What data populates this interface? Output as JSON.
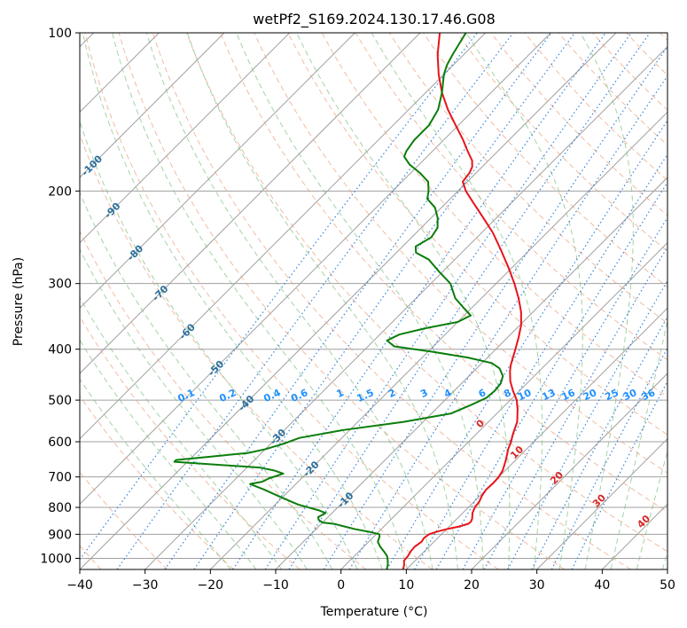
{
  "chart_data": {
    "type": "line",
    "title": "wetPf2_S169.2024.130.17.46.G08",
    "xlabel": "Temperature (°C)",
    "ylabel": "Pressure (hPa)",
    "xlim": [
      -40,
      50
    ],
    "ylim": [
      1050,
      100
    ],
    "y_scale": "log",
    "skew": true,
    "x_ticks": [
      -40,
      -30,
      -20,
      -10,
      0,
      10,
      20,
      30,
      40,
      50
    ],
    "y_ticks": [
      100,
      200,
      300,
      400,
      500,
      600,
      700,
      800,
      900,
      1000
    ],
    "grid": true,
    "colors": {
      "temperature": "#e8141a",
      "dewpoint": "#0a7d0a",
      "dry_adiabat": "#e9a07a",
      "moist_adiabat": "#7fbf7f",
      "mixing_ratio": "#1e78d8",
      "isotherm": "#a0a0a0"
    },
    "series": [
      {
        "key": "temperature",
        "points": [
          [
            1050,
            9.5
          ],
          [
            1030,
            9.0
          ],
          [
            1010,
            8.3
          ],
          [
            990,
            8.2
          ],
          [
            970,
            7.9
          ],
          [
            950,
            7.8
          ],
          [
            930,
            8.1
          ],
          [
            915,
            7.9
          ],
          [
            900,
            8.1
          ],
          [
            890,
            8.9
          ],
          [
            880,
            10.0
          ],
          [
            870,
            11.5
          ],
          [
            860,
            12.5
          ],
          [
            852,
            12.6
          ],
          [
            840,
            12.3
          ],
          [
            820,
            11.5
          ],
          [
            800,
            11.0
          ],
          [
            780,
            10.8
          ],
          [
            760,
            10.3
          ],
          [
            740,
            10.0
          ],
          [
            720,
            10.1
          ],
          [
            700,
            10.0
          ],
          [
            680,
            9.6
          ],
          [
            650,
            8.5
          ],
          [
            620,
            7.2
          ],
          [
            600,
            6.5
          ],
          [
            580,
            5.6
          ],
          [
            550,
            4.4
          ],
          [
            520,
            2.5
          ],
          [
            500,
            1.0
          ],
          [
            480,
            -1.0
          ],
          [
            460,
            -2.9
          ],
          [
            440,
            -4.5
          ],
          [
            430,
            -5.2
          ],
          [
            420,
            -5.8
          ],
          [
            400,
            -7.0
          ],
          [
            380,
            -8.3
          ],
          [
            360,
            -9.8
          ],
          [
            340,
            -11.8
          ],
          [
            320,
            -14.3
          ],
          [
            300,
            -17.2
          ],
          [
            280,
            -20.5
          ],
          [
            260,
            -24.2
          ],
          [
            240,
            -28.3
          ],
          [
            225,
            -32.0
          ],
          [
            210,
            -36.0
          ],
          [
            200,
            -38.8
          ],
          [
            192,
            -40.7
          ],
          [
            185,
            -41.0
          ],
          [
            180,
            -41.5
          ],
          [
            175,
            -42.5
          ],
          [
            170,
            -44.0
          ],
          [
            165,
            -45.5
          ],
          [
            160,
            -47.0
          ],
          [
            150,
            -50.4
          ],
          [
            140,
            -54.0
          ],
          [
            130,
            -57.5
          ],
          [
            120,
            -60.8
          ],
          [
            110,
            -64.0
          ],
          [
            100,
            -67.0
          ]
        ]
      },
      {
        "key": "dewpoint",
        "points": [
          [
            1050,
            7.0
          ],
          [
            1030,
            6.5
          ],
          [
            1010,
            5.8
          ],
          [
            990,
            5.0
          ],
          [
            970,
            3.8
          ],
          [
            950,
            2.5
          ],
          [
            930,
            1.4
          ],
          [
            910,
            0.9
          ],
          [
            900,
            0.5
          ],
          [
            890,
            -1.5
          ],
          [
            880,
            -4.0
          ],
          [
            870,
            -6.0
          ],
          [
            860,
            -8.0
          ],
          [
            855,
            -10.0
          ],
          [
            845,
            -11.0
          ],
          [
            835,
            -11.5
          ],
          [
            820,
            -11.0
          ],
          [
            810,
            -12.5
          ],
          [
            800,
            -14.5
          ],
          [
            790,
            -16.5
          ],
          [
            780,
            -18.0
          ],
          [
            760,
            -21.0
          ],
          [
            740,
            -24.0
          ],
          [
            722,
            -27.0
          ],
          [
            715,
            -25.5
          ],
          [
            705,
            -25.0
          ],
          [
            690,
            -23.5
          ],
          [
            680,
            -25.5
          ],
          [
            672,
            -28.0
          ],
          [
            660,
            -38.0
          ],
          [
            655,
            -42.0
          ],
          [
            650,
            -42.0
          ],
          [
            640,
            -37.0
          ],
          [
            630,
            -32.0
          ],
          [
            620,
            -30.0
          ],
          [
            605,
            -28.0
          ],
          [
            590,
            -26.5
          ],
          [
            570,
            -21.0
          ],
          [
            550,
            -13.0
          ],
          [
            530,
            -7.0
          ],
          [
            510,
            -5.2
          ],
          [
            495,
            -4.0
          ],
          [
            480,
            -3.8
          ],
          [
            465,
            -4.0
          ],
          [
            450,
            -4.8
          ],
          [
            435,
            -6.5
          ],
          [
            425,
            -8.5
          ],
          [
            415,
            -13.0
          ],
          [
            405,
            -19.0
          ],
          [
            395,
            -26.0
          ],
          [
            385,
            -28.0
          ],
          [
            375,
            -27.0
          ],
          [
            365,
            -24.0
          ],
          [
            355,
            -20.0
          ],
          [
            345,
            -19.0
          ],
          [
            335,
            -21.0
          ],
          [
            320,
            -24.0
          ],
          [
            300,
            -27.0
          ],
          [
            285,
            -30.5
          ],
          [
            270,
            -34.0
          ],
          [
            262,
            -37.0
          ],
          [
            255,
            -38.0
          ],
          [
            245,
            -37.0
          ],
          [
            235,
            -37.5
          ],
          [
            225,
            -39.0
          ],
          [
            215,
            -41.0
          ],
          [
            207,
            -43.5
          ],
          [
            200,
            -44.5
          ],
          [
            192,
            -46.0
          ],
          [
            185,
            -48.5
          ],
          [
            178,
            -51.5
          ],
          [
            172,
            -53.5
          ],
          [
            168,
            -54.0
          ],
          [
            160,
            -54.5
          ],
          [
            150,
            -54.5
          ],
          [
            140,
            -55.5
          ],
          [
            130,
            -57.5
          ],
          [
            120,
            -60.0
          ],
          [
            115,
            -61.0
          ],
          [
            110,
            -61.7
          ],
          [
            100,
            -63.0
          ]
        ]
      }
    ],
    "dry_adiabat_labels": [
      "-100",
      "-90",
      "-80",
      "-70",
      "-60",
      "-50",
      "-40",
      "-30",
      "-20",
      "-10"
    ],
    "moist_adiabat_labels": [
      "0",
      "10",
      "20",
      "30",
      "40"
    ],
    "mixing_ratio_labels": [
      "0.1",
      "0.2",
      "0.4",
      "0.6",
      "1",
      "1.5",
      "2",
      "3",
      "4",
      "6",
      "8",
      "10",
      "13",
      "16",
      "20",
      "25",
      "30",
      "36"
    ]
  }
}
